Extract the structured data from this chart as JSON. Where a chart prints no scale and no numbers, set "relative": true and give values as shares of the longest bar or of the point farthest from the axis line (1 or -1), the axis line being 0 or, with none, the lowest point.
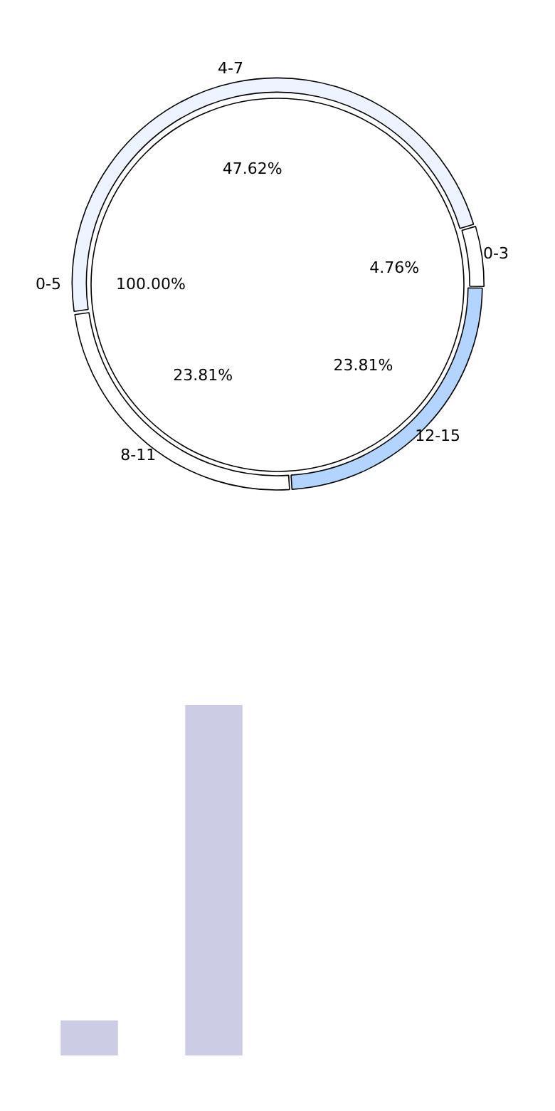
{
  "chart_data": [
    {
      "type": "pie",
      "categories": [
        "0-5"
      ],
      "values": [
        100
      ],
      "value_labels": [
        "100.00%"
      ],
      "colors": [
        "#ffffff"
      ]
    },
    {
      "type": "donut",
      "categories": [
        "4-7",
        "0-3",
        "12-15",
        "8-11"
      ],
      "values": [
        47.62,
        4.76,
        23.81,
        23.81
      ],
      "value_labels": [
        "47.62%",
        "4.76%",
        "23.81%",
        "23.81%"
      ],
      "colors": [
        "#eef4ff",
        "#ffffff",
        "#b3d4ff",
        "#ffffff"
      ]
    },
    {
      "type": "bar",
      "relative": true,
      "categories": [
        null,
        null
      ],
      "values": [
        0.1,
        1
      ],
      "color": "#ccccE4"
    }
  ]
}
